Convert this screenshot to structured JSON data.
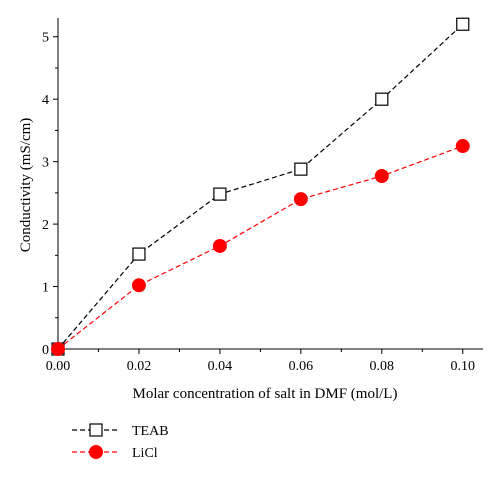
{
  "chart_data": {
    "type": "line",
    "title": "",
    "xlabel": "Molar concentration of salt in DMF (mol/L)",
    "ylabel": "Conductivity (mS/cm)",
    "xlim": [
      0.0,
      0.105
    ],
    "ylim": [
      0,
      5.3
    ],
    "xticks": [
      0.0,
      0.02,
      0.04,
      0.06,
      0.08,
      0.1
    ],
    "xtick_labels": [
      "0.00",
      "0.02",
      "0.04",
      "0.06",
      "0.08",
      "0.10"
    ],
    "yticks": [
      0,
      1,
      2,
      3,
      4,
      5
    ],
    "ytick_labels": [
      "0",
      "1",
      "2",
      "3",
      "4",
      "5"
    ],
    "grid": false,
    "legend_position": "below-left",
    "x": [
      0.0,
      0.02,
      0.04,
      0.06,
      0.08,
      0.1
    ],
    "series": [
      {
        "name": "TEAB",
        "marker": "open-square",
        "line_style": "dashed",
        "color": "#000000",
        "values": [
          0.0,
          1.52,
          2.48,
          2.88,
          4.0,
          5.2
        ]
      },
      {
        "name": "LiCl",
        "marker": "filled-circle",
        "line_style": "dashed",
        "color": "#ff0000",
        "values": [
          0.0,
          1.02,
          1.65,
          2.4,
          2.77,
          3.25
        ]
      }
    ]
  }
}
